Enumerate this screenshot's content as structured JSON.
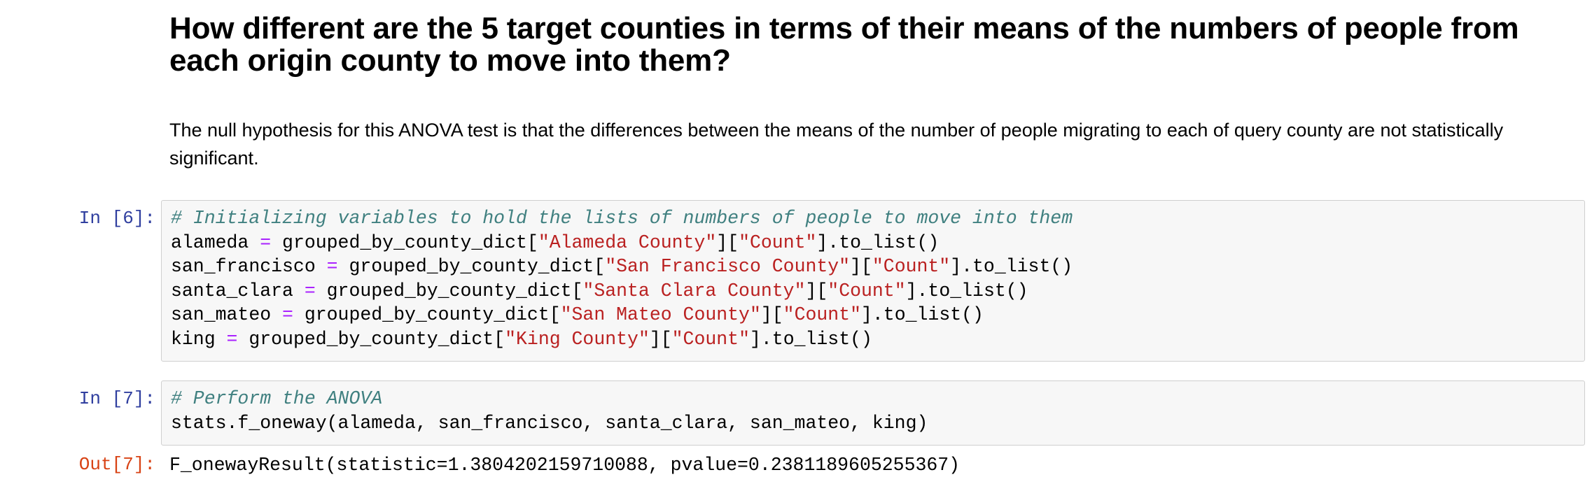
{
  "markdown": {
    "heading": "How different are the 5 target counties in terms of their means of the numbers of people from each origin county to move into them?",
    "paragraph": "The null hypothesis for this ANOVA test is that the differences between the means of the number of people migrating to each of query county are not statistically significant."
  },
  "cells": [
    {
      "prompt": "In [6]:",
      "lines": [
        {
          "comment": "# Initializing variables to hold the lists of numbers of people to move into them"
        },
        {
          "var": "alameda",
          "op": "=",
          "pre": "grouped_by_county_dict[",
          "s1": "\"Alameda County\"",
          "mid": "][",
          "s2": "\"Count\"",
          "post": "].to_list()"
        },
        {
          "var": "san_francisco",
          "op": "=",
          "pre": "grouped_by_county_dict[",
          "s1": "\"San Francisco County\"",
          "mid": "][",
          "s2": "\"Count\"",
          "post": "].to_list()"
        },
        {
          "var": "santa_clara",
          "op": "=",
          "pre": "grouped_by_county_dict[",
          "s1": "\"Santa Clara County\"",
          "mid": "][",
          "s2": "\"Count\"",
          "post": "].to_list()"
        },
        {
          "var": "san_mateo",
          "op": "=",
          "pre": "grouped_by_county_dict[",
          "s1": "\"San Mateo County\"",
          "mid": "][",
          "s2": "\"Count\"",
          "post": "].to_list()"
        },
        {
          "var": "king",
          "op": "=",
          "pre": "grouped_by_county_dict[",
          "s1": "\"King County\"",
          "mid": "][",
          "s2": "\"Count\"",
          "post": "].to_list()"
        }
      ]
    },
    {
      "prompt": "In [7]:",
      "comment": "# Perform the ANOVA",
      "code": "stats.f_oneway(alameda, san_francisco, santa_clara, san_mateo, king)",
      "out_prompt": "Out[7]:",
      "output": "F_onewayResult(statistic=1.3804202159710088, pvalue=0.2381189605255367)"
    }
  ],
  "colors": {
    "in_prompt": "#303f9f",
    "out_prompt": "#d84315",
    "comment": "#408080",
    "operator": "#aa22ff",
    "string": "#ba2121",
    "cell_background": "#f7f7f7",
    "cell_border": "#cfcfcf"
  }
}
